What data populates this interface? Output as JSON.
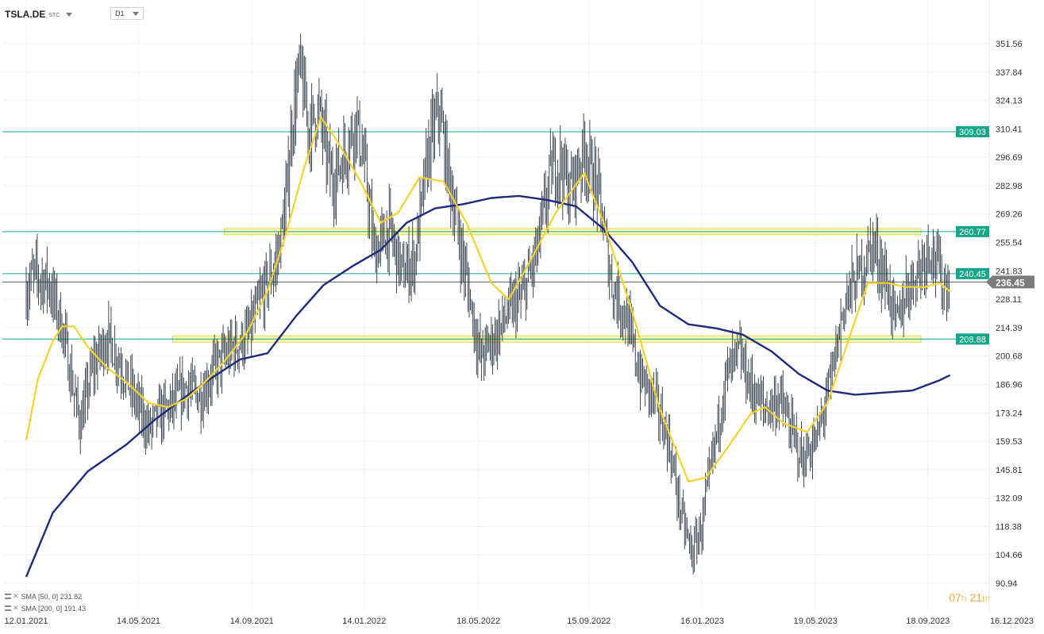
{
  "header": {
    "symbol": "TSLA.DE",
    "exchange": "STC",
    "timeframe": "D1"
  },
  "indicators": [
    {
      "label": "SMA [50, 0]",
      "value": "231.82",
      "color": "#f2d22e"
    },
    {
      "label": "SMA [200, 0]",
      "value": "191.43",
      "color": "#1f2a7a"
    }
  ],
  "countdown": {
    "hours": "07",
    "h_unit": "h",
    "minutes": "21",
    "m_unit": "m"
  },
  "colors": {
    "candle": "#2a3644",
    "sma50": "#f2d22e",
    "sma200": "#1f2a7a",
    "hline": "#17a589",
    "price_tag": "#17a589",
    "current_tag": "#7b7b7b",
    "zone_fill": "#fff59a",
    "zone_stroke": "#e6d64a",
    "grid": "#eef0f3"
  },
  "chart_data": {
    "type": "candlestick",
    "x_axis": {
      "type": "date",
      "ticks": [
        "12.01.2021",
        "14.05.2021",
        "14.09.2021",
        "14.01.2022",
        "18.05.2022",
        "15.09.2022",
        "16.01.2023",
        "19.05.2023",
        "18.09.2023",
        "16.12.2023"
      ]
    },
    "y_axis": {
      "ticks": [
        351.56,
        337.84,
        324.13,
        310.41,
        296.69,
        282.98,
        269.26,
        255.54,
        241.83,
        228.11,
        214.39,
        200.68,
        186.96,
        173.24,
        159.53,
        145.81,
        132.09,
        118.38,
        104.66,
        90.94
      ],
      "range": [
        90.94,
        351.56
      ]
    },
    "horizontal_lines": [
      {
        "value": 309.03,
        "label": "309.03"
      },
      {
        "value": 260.77,
        "label": "260.77"
      },
      {
        "value": 240.45,
        "label": "240.45"
      },
      {
        "value": 208.88,
        "label": "208.88"
      }
    ],
    "current_price": {
      "value": 236.45,
      "label": "236.45"
    },
    "zones": [
      {
        "from": "15.08.2021",
        "to": "15.10.2023",
        "value": 260.77
      },
      {
        "from": "20.06.2021",
        "to": "01.11.2023",
        "value": 208.88
      }
    ],
    "close_path": [
      [
        "12.01.2021",
        232
      ],
      [
        "20.01.2021",
        240
      ],
      [
        "05.02.2021",
        236
      ],
      [
        "20.02.2021",
        215
      ],
      [
        "05.03.2021",
        182
      ],
      [
        "12.03.2021",
        168
      ],
      [
        "25.03.2021",
        195
      ],
      [
        "10.04.2021",
        210
      ],
      [
        "25.04.2021",
        196
      ],
      [
        "10.05.2021",
        180
      ],
      [
        "25.05.2021",
        165
      ],
      [
        "05.06.2021",
        172
      ],
      [
        "20.06.2021",
        177
      ],
      [
        "05.07.2021",
        186
      ],
      [
        "20.07.2021",
        181
      ],
      [
        "05.08.2021",
        195
      ],
      [
        "25.08.2021",
        205
      ],
      [
        "10.09.2021",
        210
      ],
      [
        "25.09.2021",
        230
      ],
      [
        "10.10.2021",
        245
      ],
      [
        "20.10.2021",
        270
      ],
      [
        "28.10.2021",
        315
      ],
      [
        "05.11.2021",
        340
      ],
      [
        "15.11.2021",
        310
      ],
      [
        "25.11.2021",
        320
      ],
      [
        "10.12.2021",
        285
      ],
      [
        "25.12.2021",
        300
      ],
      [
        "05.01.2022",
        315
      ],
      [
        "15.01.2022",
        290
      ],
      [
        "25.01.2022",
        250
      ],
      [
        "10.02.2022",
        262
      ],
      [
        "25.02.2022",
        240
      ],
      [
        "10.03.2022",
        248
      ],
      [
        "25.03.2022",
        300
      ],
      [
        "05.04.2022",
        320
      ],
      [
        "15.04.2022",
        290
      ],
      [
        "28.04.2022",
        255
      ],
      [
        "10.05.2022",
        225
      ],
      [
        "20.05.2022",
        200
      ],
      [
        "05.06.2022",
        210
      ],
      [
        "20.06.2022",
        222
      ],
      [
        "05.07.2022",
        230
      ],
      [
        "20.07.2022",
        250
      ],
      [
        "05.08.2022",
        290
      ],
      [
        "15.08.2022",
        295
      ],
      [
        "25.08.2022",
        280
      ],
      [
        "10.09.2022",
        300
      ],
      [
        "25.09.2022",
        280
      ],
      [
        "10.10.2022",
        235
      ],
      [
        "25.10.2022",
        220
      ],
      [
        "10.11.2022",
        190
      ],
      [
        "25.11.2022",
        180
      ],
      [
        "10.12.2022",
        160
      ],
      [
        "25.12.2022",
        122
      ],
      [
        "05.01.2023",
        105
      ],
      [
        "15.01.2023",
        118
      ],
      [
        "25.01.2023",
        145
      ],
      [
        "10.02.2023",
        190
      ],
      [
        "25.02.2023",
        202
      ],
      [
        "10.03.2023",
        185
      ],
      [
        "25.03.2023",
        175
      ],
      [
        "10.04.2023",
        180
      ],
      [
        "25.04.2023",
        162
      ],
      [
        "05.05.2023",
        150
      ],
      [
        "20.05.2023",
        160
      ],
      [
        "05.06.2023",
        190
      ],
      [
        "20.06.2023",
        228
      ],
      [
        "05.07.2023",
        240
      ],
      [
        "20.07.2023",
        255
      ],
      [
        "05.08.2023",
        235
      ],
      [
        "15.08.2023",
        215
      ],
      [
        "25.08.2023",
        232
      ],
      [
        "10.09.2023",
        245
      ],
      [
        "20.09.2023",
        255
      ],
      [
        "05.10.2023",
        235
      ],
      [
        "12.10.2023",
        236.45
      ]
    ],
    "sma50": [
      [
        "12.01.2021",
        160
      ],
      [
        "25.01.2021",
        190
      ],
      [
        "10.02.2021",
        208
      ],
      [
        "20.02.2021",
        215
      ],
      [
        "05.03.2021",
        215
      ],
      [
        "20.03.2021",
        205
      ],
      [
        "10.04.2021",
        195
      ],
      [
        "01.05.2021",
        188
      ],
      [
        "25.05.2021",
        178
      ],
      [
        "15.06.2021",
        176
      ],
      [
        "05.07.2021",
        180
      ],
      [
        "25.07.2021",
        188
      ],
      [
        "15.08.2021",
        198
      ],
      [
        "10.09.2021",
        213
      ],
      [
        "01.10.2021",
        232
      ],
      [
        "20.10.2021",
        258
      ],
      [
        "10.11.2021",
        292
      ],
      [
        "28.11.2021",
        316
      ],
      [
        "15.12.2021",
        305
      ],
      [
        "10.01.2022",
        285
      ],
      [
        "01.02.2022",
        265
      ],
      [
        "20.02.2022",
        270
      ],
      [
        "15.03.2022",
        287
      ],
      [
        "10.04.2022",
        285
      ],
      [
        "05.05.2022",
        265
      ],
      [
        "01.06.2022",
        236
      ],
      [
        "20.06.2022",
        228
      ],
      [
        "15.07.2022",
        248
      ],
      [
        "10.08.2022",
        270
      ],
      [
        "10.09.2022",
        289
      ],
      [
        "01.10.2022",
        265
      ],
      [
        "01.11.2022",
        222
      ],
      [
        "01.12.2022",
        175
      ],
      [
        "01.01.2023",
        140
      ],
      [
        "20.01.2023",
        142
      ],
      [
        "15.02.2023",
        158
      ],
      [
        "10.03.2023",
        173
      ],
      [
        "25.03.2023",
        176
      ],
      [
        "15.04.2023",
        168
      ],
      [
        "10.05.2023",
        164
      ],
      [
        "01.06.2023",
        178
      ],
      [
        "25.06.2023",
        210
      ],
      [
        "15.07.2023",
        236
      ],
      [
        "05.08.2023",
        236
      ],
      [
        "25.08.2023",
        234
      ],
      [
        "15.09.2023",
        234
      ],
      [
        "01.10.2023",
        236
      ],
      [
        "12.10.2023",
        231.82
      ]
    ],
    "sma200": [
      [
        "12.01.2021",
        94
      ],
      [
        "10.02.2021",
        125
      ],
      [
        "20.03.2021",
        145
      ],
      [
        "01.05.2021",
        158
      ],
      [
        "01.06.2021",
        170
      ],
      [
        "01.07.2021",
        180
      ],
      [
        "01.08.2021",
        190
      ],
      [
        "01.09.2021",
        199
      ],
      [
        "01.10.2021",
        202
      ],
      [
        "01.11.2021",
        220
      ],
      [
        "01.12.2021",
        235
      ],
      [
        "01.01.2022",
        244
      ],
      [
        "01.02.2022",
        252
      ],
      [
        "01.03.2022",
        265
      ],
      [
        "01.04.2022",
        272
      ],
      [
        "01.05.2022",
        274
      ],
      [
        "01.06.2022",
        277
      ],
      [
        "01.07.2022",
        278
      ],
      [
        "01.08.2022",
        276
      ],
      [
        "01.09.2022",
        273
      ],
      [
        "01.10.2022",
        262
      ],
      [
        "01.11.2022",
        246
      ],
      [
        "01.12.2022",
        225
      ],
      [
        "01.01.2023",
        216
      ],
      [
        "01.02.2023",
        214
      ],
      [
        "01.03.2023",
        211
      ],
      [
        "01.04.2023",
        203
      ],
      [
        "01.05.2023",
        192
      ],
      [
        "01.06.2023",
        184
      ],
      [
        "01.07.2023",
        182
      ],
      [
        "01.08.2023",
        183
      ],
      [
        "01.09.2023",
        184
      ],
      [
        "01.10.2023",
        189
      ],
      [
        "12.10.2023",
        191.43
      ]
    ]
  }
}
